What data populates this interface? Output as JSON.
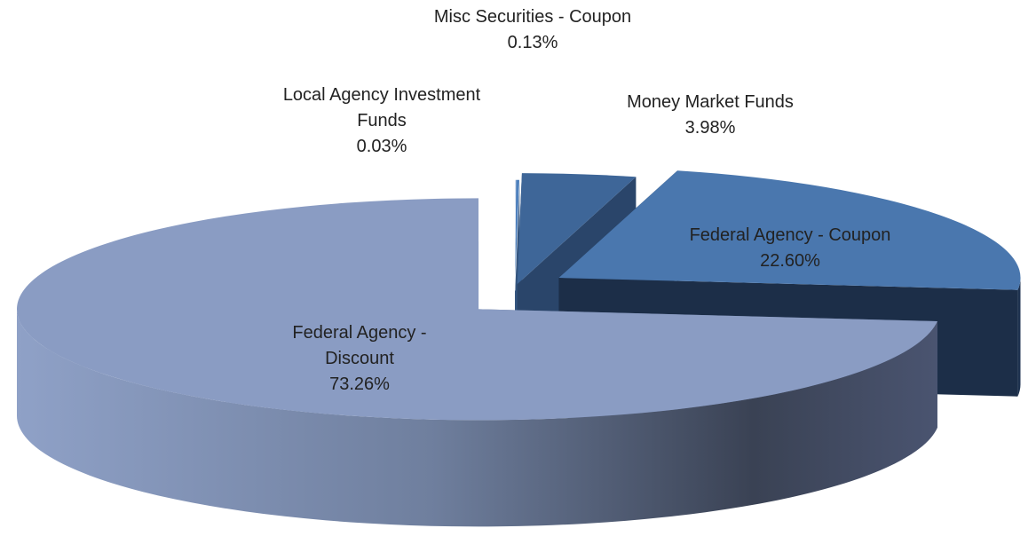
{
  "chart_data": {
    "type": "pie",
    "categories": [
      "Local Agency Investment Funds",
      "Misc Securities - Coupon",
      "Money Market Funds",
      "Federal Agency - Coupon",
      "Federal Agency - Discount"
    ],
    "values": [
      0.03,
      0.13,
      3.98,
      22.6,
      73.26
    ],
    "value_labels": [
      "0.03%",
      "0.13%",
      "3.98%",
      "22.60%",
      "73.26%"
    ],
    "colors": [
      "#9fb3d6",
      "#4f81bd",
      "#3e6698",
      "#4a77ae",
      "#8a9cc3"
    ]
  }
}
